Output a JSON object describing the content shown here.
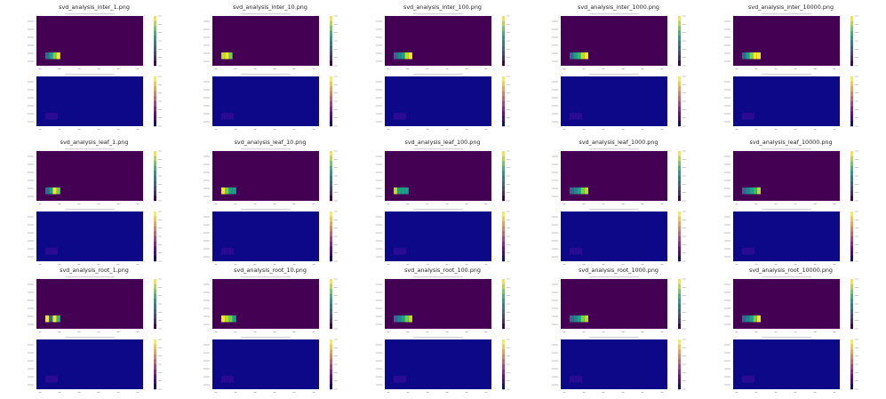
{
  "colors": {
    "viridis_bg": "#440154",
    "plasma_bg": "#0d0887",
    "bar_colors": [
      "#3b528b",
      "#21918c",
      "#5ec962",
      "#fde725"
    ]
  },
  "grid": {
    "rows": [
      "inter",
      "leaf",
      "root"
    ],
    "cols": [
      "1",
      "10",
      "100",
      "1000",
      "10000"
    ]
  },
  "chart_data": [
    {
      "title": "svd_analysis_inter_1.png",
      "type": "heatmap",
      "top_colormap": "viridis",
      "bottom_colormap": "plasma",
      "band": [
        0.35,
        0.55,
        0.8,
        1.0
      ]
    },
    {
      "title": "svd_analysis_inter_10.png",
      "type": "heatmap",
      "top_colormap": "viridis",
      "bottom_colormap": "plasma",
      "band": [
        0.9,
        1.0,
        0.75
      ]
    },
    {
      "title": "svd_analysis_inter_100.png",
      "type": "heatmap",
      "top_colormap": "viridis",
      "bottom_colormap": "plasma",
      "band": [
        0.3,
        0.45,
        0.6,
        0.85,
        1.0
      ]
    },
    {
      "title": "svd_analysis_inter_1000.png",
      "type": "heatmap",
      "top_colormap": "viridis",
      "bottom_colormap": "plasma",
      "band": [
        0.35,
        0.5,
        0.65,
        0.85,
        0.95
      ]
    },
    {
      "title": "svd_analysis_inter_10000.png",
      "type": "heatmap",
      "top_colormap": "viridis",
      "bottom_colormap": "plasma",
      "band": [
        0.35,
        0.55,
        0.75,
        0.95,
        1.0
      ]
    },
    {
      "title": "svd_analysis_leaf_1.png",
      "type": "heatmap",
      "top_colormap": "viridis",
      "bottom_colormap": "plasma",
      "band": [
        0.35,
        0.6,
        1.0,
        0.8
      ]
    },
    {
      "title": "svd_analysis_leaf_10.png",
      "type": "heatmap",
      "top_colormap": "viridis",
      "bottom_colormap": "plasma",
      "band": [
        0.95,
        0.75,
        0.55,
        0.5
      ]
    },
    {
      "title": "svd_analysis_leaf_100.png",
      "type": "heatmap",
      "top_colormap": "viridis",
      "bottom_colormap": "plasma",
      "band": [
        0.85,
        0.6,
        0.5,
        0.5
      ]
    },
    {
      "title": "svd_analysis_leaf_1000.png",
      "type": "heatmap",
      "top_colormap": "viridis",
      "bottom_colormap": "plasma",
      "band": [
        0.3,
        0.45,
        0.6,
        0.75,
        0.9
      ]
    },
    {
      "title": "svd_analysis_leaf_10000.png",
      "type": "heatmap",
      "top_colormap": "viridis",
      "bottom_colormap": "plasma",
      "band": [
        0.3,
        0.45,
        0.55,
        0.7,
        0.9
      ]
    },
    {
      "title": "svd_analysis_root_1.png",
      "type": "heatmap",
      "top_colormap": "viridis",
      "bottom_colormap": "plasma",
      "band": [
        0.95,
        0.3,
        1.0,
        0.7
      ]
    },
    {
      "title": "svd_analysis_root_10.png",
      "type": "heatmap",
      "top_colormap": "viridis",
      "bottom_colormap": "plasma",
      "band": [
        0.95,
        0.9,
        0.75,
        0.6
      ]
    },
    {
      "title": "svd_analysis_root_100.png",
      "type": "heatmap",
      "top_colormap": "viridis",
      "bottom_colormap": "plasma",
      "band": [
        0.3,
        0.45,
        0.6,
        0.75,
        0.9
      ]
    },
    {
      "title": "svd_analysis_root_1000.png",
      "type": "heatmap",
      "top_colormap": "viridis",
      "bottom_colormap": "plasma",
      "band": [
        0.3,
        0.45,
        0.6,
        0.75,
        0.85
      ]
    },
    {
      "title": "svd_analysis_root_10000.png",
      "type": "heatmap",
      "top_colormap": "viridis",
      "bottom_colormap": "plasma",
      "band": [
        0.3,
        0.45,
        0.6,
        0.75,
        0.95
      ]
    }
  ]
}
